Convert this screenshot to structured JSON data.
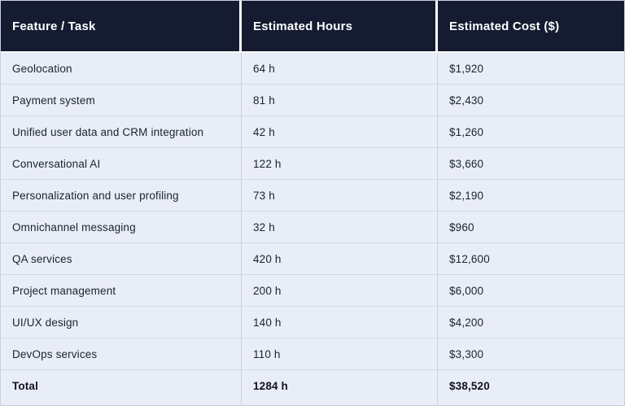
{
  "table": {
    "header": {
      "feature": "Feature / Task",
      "hours": "Estimated Hours",
      "cost": "Estimated Cost ($)"
    },
    "rows": [
      {
        "feature": "Geolocation",
        "hours": "64 h",
        "cost": "$1,920"
      },
      {
        "feature": "Payment system",
        "hours": "81 h",
        "cost": "$2,430"
      },
      {
        "feature": "Unified user data and CRM integration",
        "hours": "42 h",
        "cost": "$1,260"
      },
      {
        "feature": "Conversational AI",
        "hours": "122 h",
        "cost": "$3,660"
      },
      {
        "feature": "Personalization and user profiling",
        "hours": "73 h",
        "cost": "$2,190"
      },
      {
        "feature": "Omnichannel messaging",
        "hours": "32 h",
        "cost": "$960"
      },
      {
        "feature": "QA services",
        "hours": "420 h",
        "cost": "$12,600"
      },
      {
        "feature": "Project management",
        "hours": "200 h",
        "cost": "$6,000"
      },
      {
        "feature": "UI/UX design",
        "hours": "140 h",
        "cost": "$4,200"
      },
      {
        "feature": "DevOps services",
        "hours": "110 h",
        "cost": "$3,300"
      }
    ],
    "total": {
      "feature": "Total",
      "hours": "1284 h",
      "cost": "$38,520"
    }
  },
  "chart_data": {
    "type": "table",
    "title": "Feature estimate table",
    "columns": [
      "Feature / Task",
      "Estimated Hours",
      "Estimated Cost ($)"
    ],
    "rows": [
      [
        "Geolocation",
        "64 h",
        "$1,920"
      ],
      [
        "Payment system",
        "81 h",
        "$2,430"
      ],
      [
        "Unified user data and CRM integration",
        "42 h",
        "$1,260"
      ],
      [
        "Conversational AI",
        "122 h",
        "$3,660"
      ],
      [
        "Personalization and user profiling",
        "73 h",
        "$2,190"
      ],
      [
        "Omnichannel messaging",
        "32 h",
        "$960"
      ],
      [
        "QA services",
        "420 h",
        "$12,600"
      ],
      [
        "Project management",
        "200 h",
        "$6,000"
      ],
      [
        "UI/UX design",
        "140 h",
        "$4,200"
      ],
      [
        "DevOps services",
        "110 h",
        "$3,300"
      ],
      [
        "Total",
        "1284 h",
        "$38,520"
      ]
    ],
    "hours_numeric": [
      64,
      81,
      42,
      122,
      73,
      32,
      420,
      200,
      140,
      110
    ],
    "cost_numeric": [
      1920,
      2430,
      1260,
      3660,
      2190,
      960,
      12600,
      6000,
      4200,
      3300
    ],
    "total_hours_numeric": 1284,
    "total_cost_numeric": 38520
  },
  "colors": {
    "header_bg": "#151c31",
    "header_text": "#ffffff",
    "row_bg": "#e9edf8",
    "grid_line": "#d2d8e9",
    "vertical_line": "#cbd2e4",
    "white_gap": "#ffffff",
    "body_text": "#1c2130",
    "outer_border": "#c9cfdc"
  }
}
